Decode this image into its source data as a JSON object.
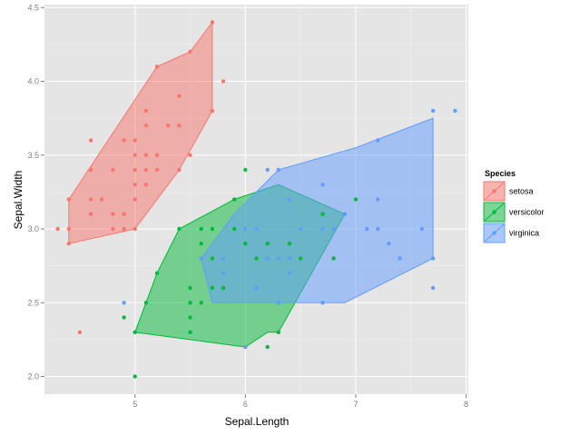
{
  "chart_data": {
    "type": "scatter",
    "title": "",
    "xlabel": "Sepal.Length",
    "ylabel": "Sepal.Width",
    "xlim": [
      4.18,
      8.02
    ],
    "ylim": [
      1.88,
      4.52
    ],
    "x_ticks": [
      5,
      6,
      7,
      8
    ],
    "y_ticks": [
      2.0,
      2.5,
      3.0,
      3.5,
      4.0,
      4.5
    ],
    "x_tick_labels": [
      "5",
      "6",
      "7",
      "8"
    ],
    "y_tick_labels": [
      "2.0",
      "2.5",
      "3.0",
      "3.5",
      "4.0",
      "4.5"
    ],
    "grid": true,
    "background": "#e5e5e5",
    "legend": {
      "title": "Species",
      "position": "right"
    },
    "series": [
      {
        "name": "setosa",
        "color": "#f8766d",
        "points": [
          [
            4.3,
            3.0
          ],
          [
            4.4,
            2.9
          ],
          [
            4.4,
            3.0
          ],
          [
            4.4,
            3.2
          ],
          [
            4.5,
            2.3
          ],
          [
            4.6,
            3.1
          ],
          [
            4.6,
            3.2
          ],
          [
            4.6,
            3.4
          ],
          [
            4.6,
            3.6
          ],
          [
            4.7,
            3.2
          ],
          [
            4.8,
            3.0
          ],
          [
            4.8,
            3.1
          ],
          [
            4.8,
            3.4
          ],
          [
            4.9,
            3.0
          ],
          [
            4.9,
            3.1
          ],
          [
            4.9,
            3.6
          ],
          [
            5.0,
            3.0
          ],
          [
            5.0,
            3.2
          ],
          [
            5.0,
            3.3
          ],
          [
            5.0,
            3.4
          ],
          [
            5.0,
            3.5
          ],
          [
            5.0,
            3.6
          ],
          [
            5.1,
            3.3
          ],
          [
            5.1,
            3.4
          ],
          [
            5.1,
            3.5
          ],
          [
            5.1,
            3.7
          ],
          [
            5.1,
            3.8
          ],
          [
            5.2,
            3.4
          ],
          [
            5.2,
            3.5
          ],
          [
            5.2,
            4.1
          ],
          [
            5.3,
            3.7
          ],
          [
            5.4,
            3.4
          ],
          [
            5.4,
            3.7
          ],
          [
            5.4,
            3.9
          ],
          [
            5.5,
            3.5
          ],
          [
            5.5,
            4.2
          ],
          [
            5.7,
            3.8
          ],
          [
            5.7,
            4.4
          ],
          [
            5.8,
            4.0
          ]
        ],
        "hull": [
          [
            4.4,
            2.9
          ],
          [
            5.0,
            3.0
          ],
          [
            5.4,
            3.4
          ],
          [
            5.7,
            3.8
          ],
          [
            5.7,
            4.4
          ],
          [
            5.5,
            4.2
          ],
          [
            5.2,
            4.1
          ],
          [
            4.4,
            3.2
          ]
        ]
      },
      {
        "name": "versicolor",
        "color": "#00ba38",
        "points": [
          [
            4.9,
            2.4
          ],
          [
            5.0,
            2.0
          ],
          [
            5.0,
            2.3
          ],
          [
            5.1,
            2.5
          ],
          [
            5.2,
            2.7
          ],
          [
            5.4,
            3.0
          ],
          [
            5.5,
            2.3
          ],
          [
            5.5,
            2.4
          ],
          [
            5.5,
            2.5
          ],
          [
            5.5,
            2.6
          ],
          [
            5.6,
            2.5
          ],
          [
            5.6,
            2.9
          ],
          [
            5.6,
            3.0
          ],
          [
            5.7,
            2.6
          ],
          [
            5.7,
            2.8
          ],
          [
            5.7,
            3.0
          ],
          [
            5.8,
            2.6
          ],
          [
            5.9,
            3.0
          ],
          [
            5.9,
            3.2
          ],
          [
            6.0,
            2.2
          ],
          [
            6.0,
            2.9
          ],
          [
            6.0,
            3.4
          ],
          [
            6.1,
            2.8
          ],
          [
            6.2,
            2.2
          ],
          [
            6.2,
            2.9
          ],
          [
            6.3,
            2.3
          ],
          [
            6.3,
            2.5
          ],
          [
            6.4,
            2.9
          ],
          [
            6.5,
            2.8
          ],
          [
            6.7,
            3.1
          ],
          [
            6.8,
            2.8
          ],
          [
            6.9,
            3.1
          ],
          [
            7.0,
            3.2
          ]
        ],
        "hull": [
          [
            5.0,
            2.3
          ],
          [
            6.0,
            2.2
          ],
          [
            6.2,
            2.3
          ],
          [
            6.3,
            2.3
          ],
          [
            6.9,
            3.1
          ],
          [
            6.3,
            3.3
          ],
          [
            5.9,
            3.2
          ],
          [
            5.4,
            3.0
          ],
          [
            5.2,
            2.7
          ]
        ]
      },
      {
        "name": "virginica",
        "color": "#619cff",
        "points": [
          [
            4.9,
            2.5
          ],
          [
            5.6,
            2.8
          ],
          [
            5.8,
            2.7
          ],
          [
            5.8,
            2.8
          ],
          [
            6.0,
            2.2
          ],
          [
            6.0,
            3.0
          ],
          [
            6.1,
            2.6
          ],
          [
            6.1,
            3.0
          ],
          [
            6.2,
            2.8
          ],
          [
            6.2,
            3.4
          ],
          [
            6.3,
            2.5
          ],
          [
            6.3,
            2.8
          ],
          [
            6.3,
            3.4
          ],
          [
            6.4,
            2.7
          ],
          [
            6.4,
            2.8
          ],
          [
            6.4,
            3.2
          ],
          [
            6.5,
            3.0
          ],
          [
            6.7,
            2.5
          ],
          [
            6.7,
            3.0
          ],
          [
            6.7,
            3.3
          ],
          [
            6.8,
            3.0
          ],
          [
            6.9,
            3.1
          ],
          [
            7.1,
            3.0
          ],
          [
            7.2,
            3.0
          ],
          [
            7.2,
            3.2
          ],
          [
            7.2,
            3.6
          ],
          [
            7.3,
            2.9
          ],
          [
            7.4,
            2.8
          ],
          [
            7.6,
            3.0
          ],
          [
            7.7,
            2.6
          ],
          [
            7.7,
            2.8
          ],
          [
            7.7,
            3.8
          ],
          [
            7.9,
            3.8
          ]
        ],
        "hull": [
          [
            5.6,
            2.8
          ],
          [
            5.7,
            2.5
          ],
          [
            6.3,
            2.5
          ],
          [
            6.9,
            2.5
          ],
          [
            7.7,
            2.8
          ],
          [
            7.7,
            3.75
          ],
          [
            7.0,
            3.55
          ],
          [
            6.3,
            3.4
          ],
          [
            5.9,
            3.1
          ]
        ]
      }
    ]
  }
}
